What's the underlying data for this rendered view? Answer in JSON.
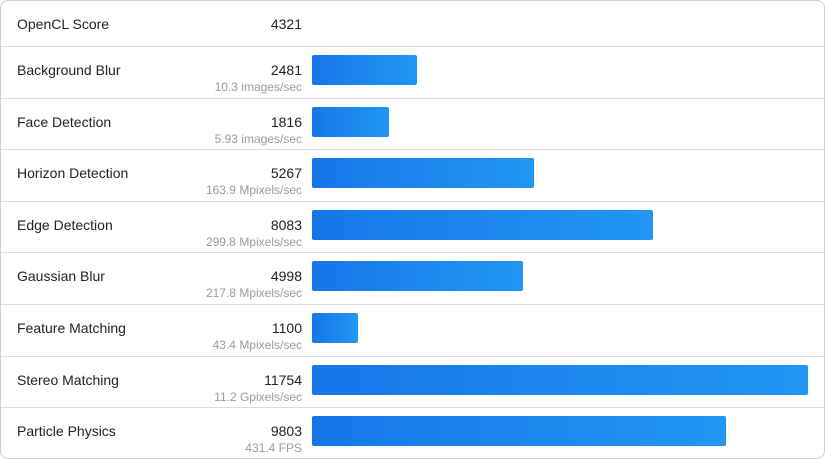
{
  "header": {
    "label": "OpenCL Score",
    "score": "4321"
  },
  "rows": [
    {
      "label": "Background Blur",
      "score": "2481",
      "rate": "10.3 images/sec"
    },
    {
      "label": "Face Detection",
      "score": "1816",
      "rate": "5.93 images/sec"
    },
    {
      "label": "Horizon Detection",
      "score": "5267",
      "rate": "163.9 Mpixels/sec"
    },
    {
      "label": "Edge Detection",
      "score": "8083",
      "rate": "299.8 Mpixels/sec"
    },
    {
      "label": "Gaussian Blur",
      "score": "4998",
      "rate": "217.8 Mpixels/sec"
    },
    {
      "label": "Feature Matching",
      "score": "1100",
      "rate": "43.4 Mpixels/sec"
    },
    {
      "label": "Stereo Matching",
      "score": "11754",
      "rate": "11.2 Gpixels/sec"
    },
    {
      "label": "Particle Physics",
      "score": "9803",
      "rate": "431.4 FPS"
    }
  ],
  "colors": {
    "bar_start": "#1676e8",
    "bar_end": "#2196f3"
  },
  "chart_data": {
    "type": "bar",
    "title": "OpenCL Score",
    "categories": [
      "Background Blur",
      "Face Detection",
      "Horizon Detection",
      "Edge Detection",
      "Gaussian Blur",
      "Feature Matching",
      "Stereo Matching",
      "Particle Physics"
    ],
    "values": [
      2481,
      1816,
      5267,
      8083,
      4998,
      1100,
      11754,
      9803
    ],
    "rates": [
      "10.3 images/sec",
      "5.93 images/sec",
      "163.9 Mpixels/sec",
      "299.8 Mpixels/sec",
      "217.8 Mpixels/sec",
      "43.4 Mpixels/sec",
      "11.2 Gpixels/sec",
      "431.4 FPS"
    ],
    "overall_score": 4321,
    "orientation": "horizontal",
    "xlabel": "",
    "ylabel": ""
  }
}
